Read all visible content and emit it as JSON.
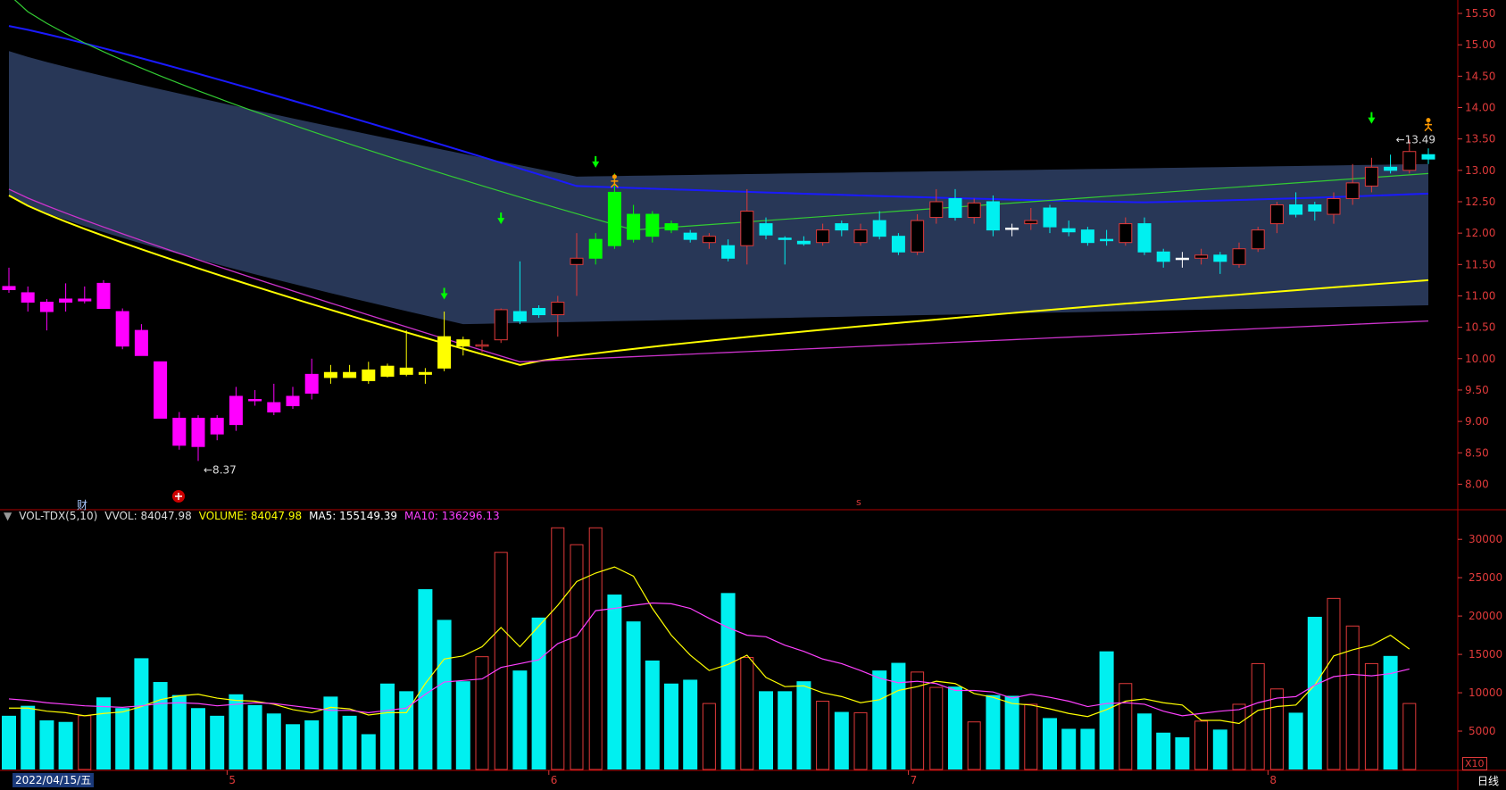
{
  "indicator": {
    "gear_icon": "settings-circle-icon",
    "name": "VOL-TDX(5,10)",
    "vvol": "VVOL: 84047.98",
    "volume": "VOLUME: 84047.98",
    "ma5": "MA5: 155149.39",
    "ma10": "MA10: 136296.13",
    "colors": {
      "name": "#dddddd",
      "volume": "#ffff00",
      "ma5": "#ffffff",
      "ma10": "#ff40ff"
    }
  },
  "footer": {
    "date": "2022/04/15/五",
    "period": "日线",
    "multiplier": "X10"
  },
  "markers": {
    "cai": "财",
    "low_label": "8.37",
    "high_label": "13.49"
  },
  "colors": {
    "up": "#e03a3a",
    "down": "#00f0f0",
    "magenta": "#ff00ff",
    "yellow": "#ffff00",
    "green": "#00ff00",
    "band": "#2a3a5c",
    "ma_blue": "#1a1aff",
    "ma_green": "#33cc33",
    "grid": "#5a0000"
  },
  "chart_data": [
    {
      "type": "candlestick",
      "ylim": [
        7.75,
        15.6
      ],
      "yticks": [
        "15.50",
        "15.00",
        "14.50",
        "14.00",
        "13.50",
        "13.00",
        "12.50",
        "12.00",
        "11.50",
        "11.00",
        "10.50",
        "10.00",
        "9.50",
        "9.00",
        "8.50",
        "8.00"
      ],
      "xticks": [
        "5",
        "6",
        "7",
        "8"
      ],
      "candles": [
        {
          "o": 11.15,
          "h": 11.45,
          "l": 11.05,
          "c": 11.1,
          "color": "magenta"
        },
        {
          "o": 11.05,
          "h": 11.15,
          "l": 10.75,
          "c": 10.9,
          "color": "magenta"
        },
        {
          "o": 10.9,
          "h": 10.95,
          "l": 10.45,
          "c": 10.75,
          "color": "magenta"
        },
        {
          "o": 10.95,
          "h": 11.2,
          "l": 10.75,
          "c": 10.9,
          "color": "magenta"
        },
        {
          "o": 10.92,
          "h": 11.15,
          "l": 10.88,
          "c": 10.95,
          "color": "magenta"
        },
        {
          "o": 11.2,
          "h": 11.25,
          "l": 10.8,
          "c": 10.8,
          "color": "magenta"
        },
        {
          "o": 10.75,
          "h": 10.8,
          "l": 10.15,
          "c": 10.2,
          "color": "magenta"
        },
        {
          "o": 10.45,
          "h": 10.55,
          "l": 10.05,
          "c": 10.05,
          "color": "magenta"
        },
        {
          "o": 9.95,
          "h": 9.95,
          "l": 9.05,
          "c": 9.05,
          "color": "magenta"
        },
        {
          "o": 9.05,
          "h": 9.15,
          "l": 8.55,
          "c": 8.62,
          "color": "magenta"
        },
        {
          "o": 9.05,
          "h": 9.1,
          "l": 8.37,
          "c": 8.6,
          "color": "magenta"
        },
        {
          "o": 9.05,
          "h": 9.1,
          "l": 8.7,
          "c": 8.8,
          "color": "magenta"
        },
        {
          "o": 9.4,
          "h": 9.55,
          "l": 8.85,
          "c": 8.95,
          "color": "magenta"
        },
        {
          "o": 9.35,
          "h": 9.5,
          "l": 9.25,
          "c": 9.35,
          "color": "magenta"
        },
        {
          "o": 9.3,
          "h": 9.6,
          "l": 9.1,
          "c": 9.15,
          "color": "magenta"
        },
        {
          "o": 9.4,
          "h": 9.55,
          "l": 9.2,
          "c": 9.25,
          "color": "magenta"
        },
        {
          "o": 9.75,
          "h": 10.0,
          "l": 9.35,
          "c": 9.45,
          "color": "magenta"
        },
        {
          "o": 9.78,
          "h": 9.9,
          "l": 9.6,
          "c": 9.7,
          "color": "yellow"
        },
        {
          "o": 9.78,
          "h": 9.9,
          "l": 9.7,
          "c": 9.7,
          "color": "yellow"
        },
        {
          "o": 9.82,
          "h": 9.95,
          "l": 9.6,
          "c": 9.65,
          "color": "yellow"
        },
        {
          "o": 9.88,
          "h": 9.92,
          "l": 9.7,
          "c": 9.72,
          "color": "yellow"
        },
        {
          "o": 9.85,
          "h": 10.45,
          "l": 9.72,
          "c": 9.75,
          "color": "yellow"
        },
        {
          "o": 9.78,
          "h": 9.85,
          "l": 9.6,
          "c": 9.75,
          "color": "yellow"
        },
        {
          "o": 10.35,
          "h": 10.75,
          "l": 9.8,
          "c": 9.85,
          "color": "yellow"
        },
        {
          "o": 10.3,
          "h": 10.35,
          "l": 10.05,
          "c": 10.2,
          "color": "yellow"
        },
        {
          "o": 10.22,
          "h": 10.3,
          "l": 10.1,
          "c": 10.2,
          "color": "up"
        },
        {
          "o": 10.3,
          "h": 10.8,
          "l": 10.25,
          "c": 10.78,
          "color": "up"
        },
        {
          "o": 10.75,
          "h": 11.55,
          "l": 10.55,
          "c": 10.6,
          "color": "down"
        },
        {
          "o": 10.8,
          "h": 10.85,
          "l": 10.65,
          "c": 10.7,
          "color": "down"
        },
        {
          "o": 10.7,
          "h": 11.0,
          "l": 10.35,
          "c": 10.9,
          "color": "up"
        },
        {
          "o": 11.5,
          "h": 12.0,
          "l": 11.0,
          "c": 11.6,
          "color": "up"
        },
        {
          "o": 11.6,
          "h": 12.0,
          "l": 11.5,
          "c": 11.9,
          "color": "green"
        },
        {
          "o": 12.65,
          "h": 12.95,
          "l": 11.75,
          "c": 11.8,
          "color": "green"
        },
        {
          "o": 12.3,
          "h": 12.45,
          "l": 11.85,
          "c": 11.9,
          "color": "green"
        },
        {
          "o": 12.3,
          "h": 12.35,
          "l": 11.85,
          "c": 11.95,
          "color": "green"
        },
        {
          "o": 12.15,
          "h": 12.2,
          "l": 12.0,
          "c": 12.05,
          "color": "green"
        },
        {
          "o": 12.0,
          "h": 12.05,
          "l": 11.85,
          "c": 11.9,
          "color": "down"
        },
        {
          "o": 11.85,
          "h": 12.0,
          "l": 11.75,
          "c": 11.95,
          "color": "up"
        },
        {
          "o": 11.8,
          "h": 11.9,
          "l": 11.55,
          "c": 11.6,
          "color": "down"
        },
        {
          "o": 11.8,
          "h": 12.7,
          "l": 11.5,
          "c": 12.35,
          "color": "up"
        },
        {
          "o": 12.15,
          "h": 12.25,
          "l": 11.9,
          "c": 11.97,
          "color": "down"
        },
        {
          "o": 11.92,
          "h": 11.95,
          "l": 11.5,
          "c": 11.9,
          "color": "down"
        },
        {
          "o": 11.87,
          "h": 11.95,
          "l": 11.8,
          "c": 11.83,
          "color": "down"
        },
        {
          "o": 11.85,
          "h": 12.15,
          "l": 11.8,
          "c": 12.05,
          "color": "up"
        },
        {
          "o": 12.15,
          "h": 12.2,
          "l": 11.95,
          "c": 12.05,
          "color": "down"
        },
        {
          "o": 11.85,
          "h": 12.15,
          "l": 11.8,
          "c": 12.05,
          "color": "up"
        },
        {
          "o": 12.2,
          "h": 12.35,
          "l": 11.9,
          "c": 11.95,
          "color": "down"
        },
        {
          "o": 11.95,
          "h": 12.0,
          "l": 11.65,
          "c": 11.7,
          "color": "down"
        },
        {
          "o": 11.7,
          "h": 12.3,
          "l": 11.65,
          "c": 12.2,
          "color": "up"
        },
        {
          "o": 12.25,
          "h": 12.7,
          "l": 12.15,
          "c": 12.5,
          "color": "up"
        },
        {
          "o": 12.55,
          "h": 12.7,
          "l": 12.2,
          "c": 12.25,
          "color": "down"
        },
        {
          "o": 12.25,
          "h": 12.55,
          "l": 12.15,
          "c": 12.48,
          "color": "up"
        },
        {
          "o": 12.5,
          "h": 12.6,
          "l": 11.95,
          "c": 12.05,
          "color": "down"
        },
        {
          "o": 12.08,
          "h": 12.15,
          "l": 11.95,
          "c": 12.08,
          "color": "white"
        },
        {
          "o": 12.15,
          "h": 12.4,
          "l": 12.05,
          "c": 12.2,
          "color": "up"
        },
        {
          "o": 12.4,
          "h": 12.45,
          "l": 12.0,
          "c": 12.1,
          "color": "down"
        },
        {
          "o": 12.07,
          "h": 12.2,
          "l": 11.95,
          "c": 12.02,
          "color": "down"
        },
        {
          "o": 12.05,
          "h": 12.1,
          "l": 11.8,
          "c": 11.85,
          "color": "down"
        },
        {
          "o": 11.9,
          "h": 12.05,
          "l": 11.8,
          "c": 11.9,
          "color": "down"
        },
        {
          "o": 11.85,
          "h": 12.25,
          "l": 11.8,
          "c": 12.15,
          "color": "up"
        },
        {
          "o": 12.15,
          "h": 12.25,
          "l": 11.65,
          "c": 11.7,
          "color": "down"
        },
        {
          "o": 11.7,
          "h": 11.75,
          "l": 11.45,
          "c": 11.55,
          "color": "down"
        },
        {
          "o": 11.6,
          "h": 11.7,
          "l": 11.45,
          "c": 11.6,
          "color": "white"
        },
        {
          "o": 11.6,
          "h": 11.75,
          "l": 11.5,
          "c": 11.65,
          "color": "up"
        },
        {
          "o": 11.65,
          "h": 11.7,
          "l": 11.35,
          "c": 11.55,
          "color": "down"
        },
        {
          "o": 11.5,
          "h": 11.85,
          "l": 11.45,
          "c": 11.75,
          "color": "up"
        },
        {
          "o": 11.75,
          "h": 12.1,
          "l": 11.7,
          "c": 12.05,
          "color": "up"
        },
        {
          "o": 12.15,
          "h": 12.5,
          "l": 12.0,
          "c": 12.45,
          "color": "up"
        },
        {
          "o": 12.45,
          "h": 12.65,
          "l": 12.25,
          "c": 12.3,
          "color": "down"
        },
        {
          "o": 12.45,
          "h": 12.5,
          "l": 12.2,
          "c": 12.35,
          "color": "down"
        },
        {
          "o": 12.3,
          "h": 12.65,
          "l": 12.15,
          "c": 12.55,
          "color": "up"
        },
        {
          "o": 12.55,
          "h": 13.1,
          "l": 12.45,
          "c": 12.8,
          "color": "up"
        },
        {
          "o": 12.75,
          "h": 13.2,
          "l": 12.65,
          "c": 13.05,
          "color": "up"
        },
        {
          "o": 13.05,
          "h": 13.25,
          "l": 12.95,
          "c": 13.0,
          "color": "down"
        },
        {
          "o": 13.0,
          "h": 13.49,
          "l": 12.95,
          "c": 13.3,
          "color": "up"
        },
        {
          "o": 13.25,
          "h": 13.35,
          "l": 13.1,
          "c": 13.18,
          "color": "down"
        }
      ],
      "volume": {
        "ylim": [
          0,
          32000
        ],
        "yticks": [
          "30000",
          "25000",
          "20000",
          "15000",
          "10000",
          "5000"
        ],
        "values": [
          7000,
          8300,
          6400,
          6200,
          7000,
          9400,
          8000,
          14500,
          11400,
          9700,
          8000,
          7000,
          9800,
          8400,
          7300,
          5900,
          6400,
          9500,
          7000,
          4600,
          11200,
          10200,
          23500,
          19500,
          11500,
          14700,
          28300,
          12900,
          19800,
          31500,
          29300,
          31500,
          22800,
          19300,
          14200,
          11200,
          11700,
          8600,
          23000,
          14600,
          10200,
          10200,
          11500,
          8900,
          7500,
          7400,
          12900,
          13900,
          12700,
          10700,
          10800,
          6200,
          9700,
          9600,
          8500,
          6700,
          5300,
          5300,
          15400,
          11200,
          7300,
          4800,
          4200,
          6300,
          5200,
          8500,
          13800,
          10500,
          7400,
          19900,
          22300,
          18700,
          13800,
          14800,
          8600
        ],
        "ma5": [
          8000,
          8000,
          7600,
          7400,
          7000,
          7300,
          7500,
          8200,
          9100,
          9600,
          9800,
          9300,
          9000,
          8900,
          8500,
          7800,
          7400,
          8100,
          7900,
          7100,
          7400,
          7400,
          11200,
          14400,
          14800,
          16000,
          18500,
          16000,
          18700,
          21400,
          24500,
          25600,
          26400,
          25200,
          21000,
          17500,
          14900,
          12900,
          13700,
          14900,
          12000,
          10800,
          10900,
          10000,
          9500,
          8700,
          9100,
          10300,
          10800,
          11500,
          11200,
          9900,
          9400,
          8600,
          8400,
          7900,
          7300,
          6900,
          7800,
          8900,
          9200,
          8700,
          8400,
          6400,
          6400,
          6000,
          7700,
          8200,
          8400,
          11000,
          14800,
          15600,
          16200,
          17500,
          15700
        ],
        "ma10": [
          9200,
          9000,
          8700,
          8500,
          8300,
          8200,
          8100,
          8300,
          8600,
          8700,
          8600,
          8300,
          8500,
          8700,
          8600,
          8300,
          8000,
          7700,
          7700,
          7400,
          7700,
          8000,
          9800,
          11400,
          11600,
          11800,
          13300,
          13800,
          14300,
          16400,
          17400,
          20700,
          21000,
          21400,
          21700,
          21600,
          21000,
          19700,
          18500,
          17500,
          17300,
          16200,
          15400,
          14400,
          13800,
          12900,
          11900,
          11300,
          11500,
          11200,
          10300,
          10300,
          10100,
          9300,
          9800,
          9400,
          8900,
          8200,
          8600,
          8700,
          8500,
          7600,
          7000,
          7300,
          7600,
          7800,
          8700,
          9300,
          9500,
          11000,
          12100,
          12400,
          12200,
          12500,
          13100
        ]
      }
    }
  ]
}
